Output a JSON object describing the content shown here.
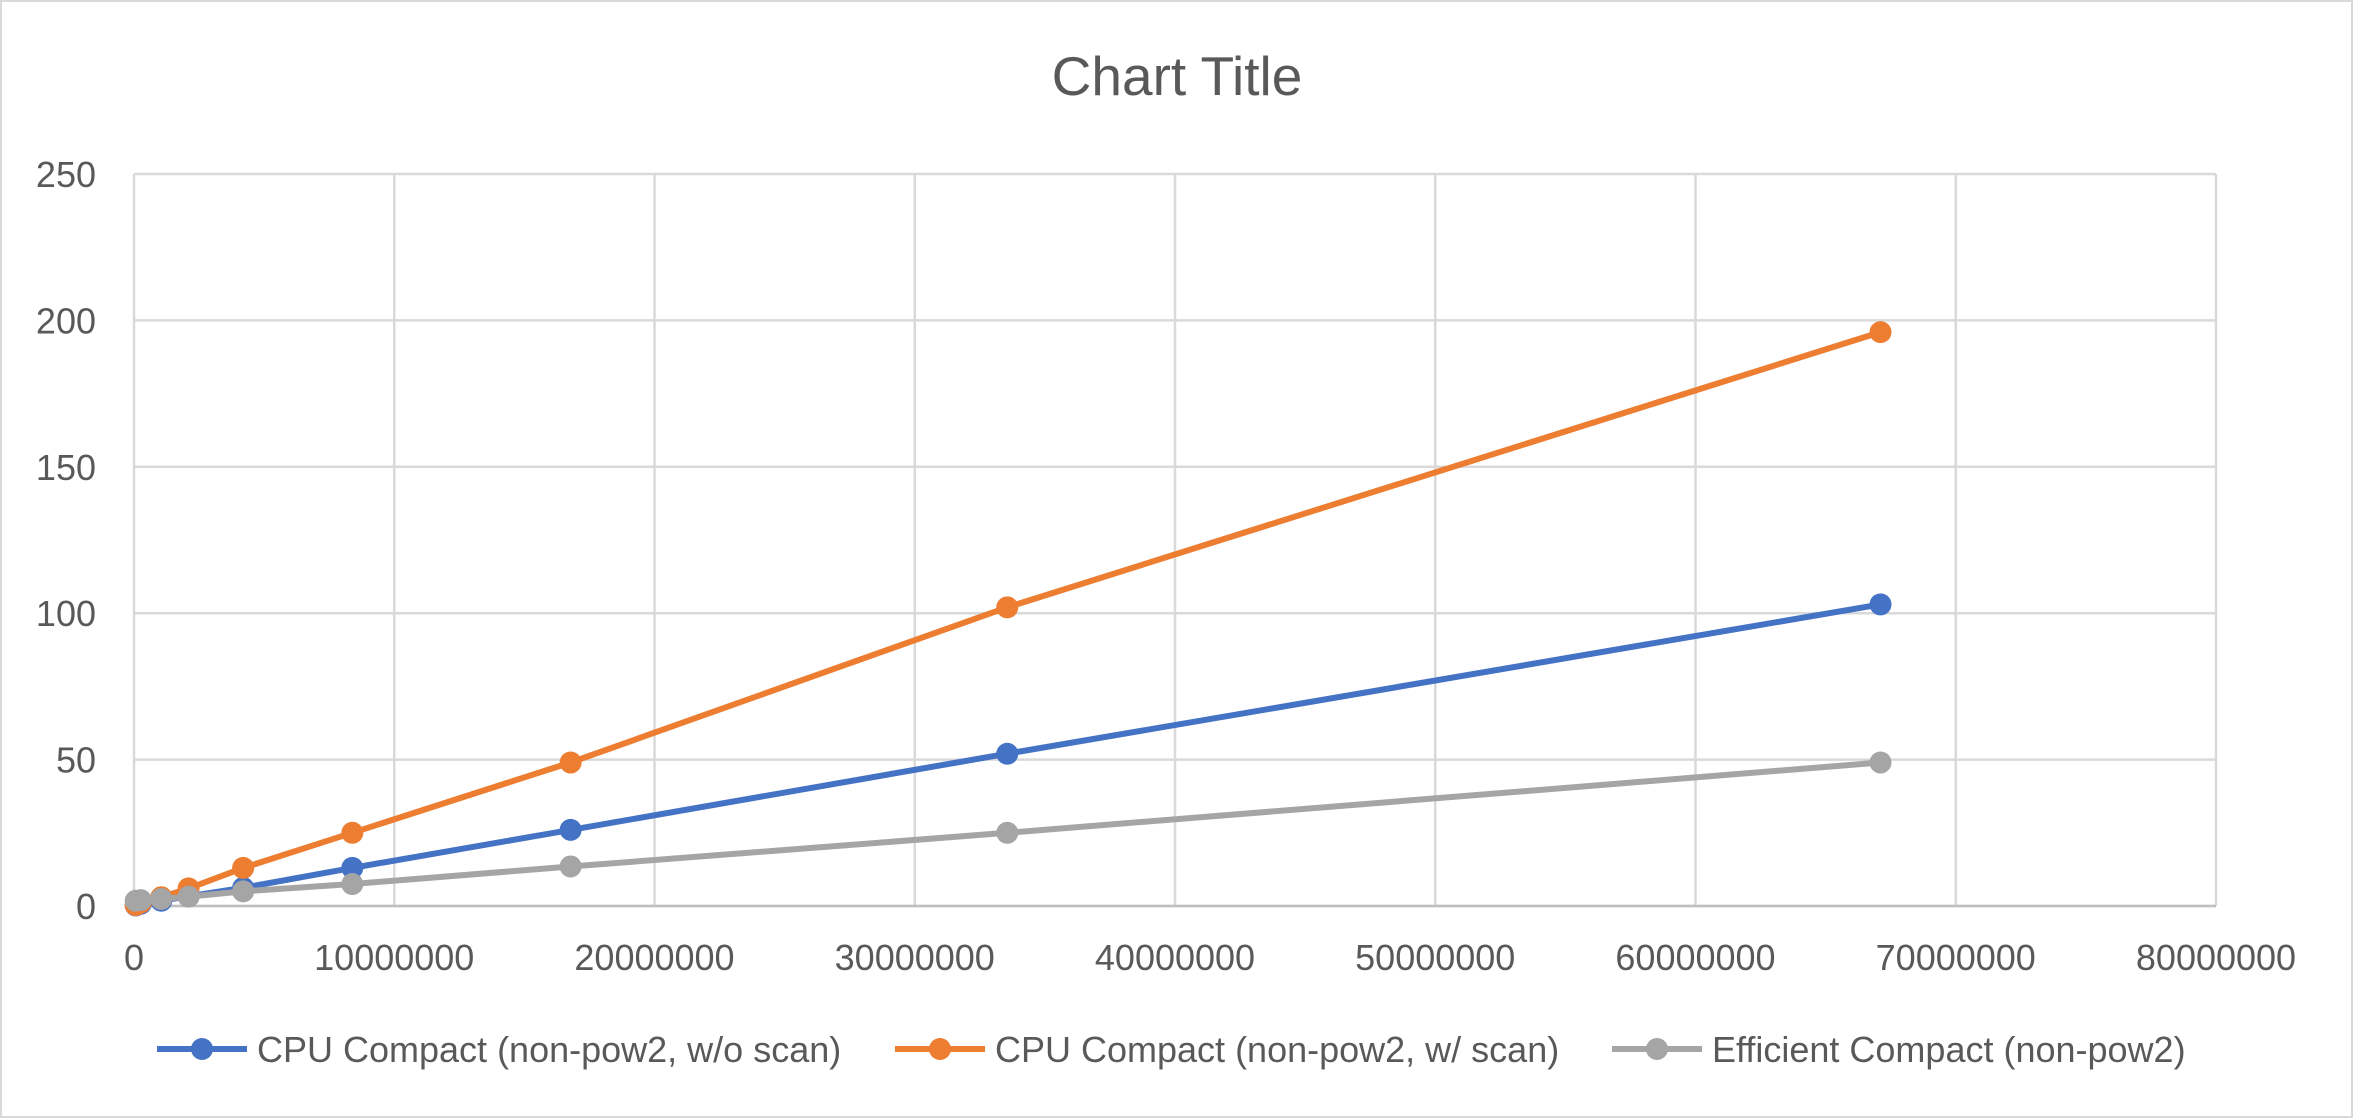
{
  "chart_data": {
    "type": "line",
    "title": "Chart Title",
    "xlabel": "",
    "ylabel": "",
    "xlim": [
      0,
      80000000
    ],
    "ylim": [
      0,
      250
    ],
    "x_ticks": [
      0,
      10000000,
      20000000,
      30000000,
      40000000,
      50000000,
      60000000,
      70000000,
      80000000
    ],
    "x_tick_labels": [
      "0",
      "10000000",
      "20000000",
      "30000000",
      "40000000",
      "50000000",
      "60000000",
      "70000000",
      "80000000"
    ],
    "y_ticks": [
      0,
      50,
      100,
      150,
      200,
      250
    ],
    "y_tick_labels": [
      "0",
      "50",
      "100",
      "150",
      "200",
      "250"
    ],
    "grid": true,
    "legend_position": "bottom",
    "series": [
      {
        "name": "CPU Compact (non-pow2, w/o scan)",
        "color": "#4472c4",
        "points": [
          [
            65536,
            0.2
          ],
          [
            262144,
            0.8
          ],
          [
            1048576,
            1.8
          ],
          [
            2097152,
            3.3
          ],
          [
            4194304,
            6.2
          ],
          [
            8388608,
            13
          ],
          [
            16777216,
            26
          ],
          [
            33554432,
            52
          ],
          [
            67108864,
            103
          ]
        ]
      },
      {
        "name": "CPU Compact (non-pow2, w/ scan)",
        "color": "#ed7d31",
        "points": [
          [
            65536,
            0.3
          ],
          [
            262144,
            1.2
          ],
          [
            1048576,
            3
          ],
          [
            2097152,
            6
          ],
          [
            4194304,
            13
          ],
          [
            8388608,
            25
          ],
          [
            16777216,
            49
          ],
          [
            33554432,
            102
          ],
          [
            67108864,
            196
          ]
        ]
      },
      {
        "name": "Efficient Compact (non-pow2)",
        "color": "#a5a5a5",
        "points": [
          [
            65536,
            1.8
          ],
          [
            262144,
            2
          ],
          [
            1048576,
            2.4
          ],
          [
            2097152,
            3.2
          ],
          [
            4194304,
            5
          ],
          [
            8388608,
            7.5
          ],
          [
            16777216,
            13.5
          ],
          [
            33554432,
            25
          ],
          [
            67108864,
            49
          ]
        ]
      }
    ]
  }
}
